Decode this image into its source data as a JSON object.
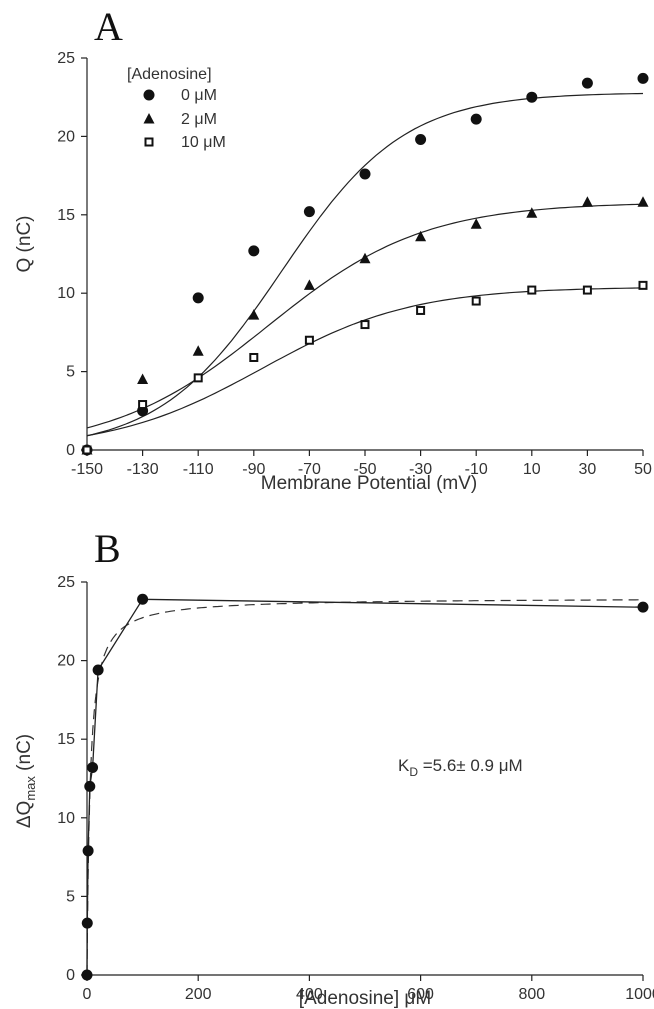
{
  "chart_data": [
    {
      "panel": "A",
      "type": "scatter",
      "xlabel": "Membrane Potential (mV)",
      "ylabel": "Q (nC)",
      "xlim": [
        -150,
        50
      ],
      "ylim": [
        0,
        25
      ],
      "xticks": [
        -150,
        -130,
        -110,
        -90,
        -70,
        -50,
        -30,
        -10,
        10,
        30,
        50
      ],
      "yticks": [
        0,
        5,
        10,
        15,
        20,
        25
      ],
      "legend_title": "[Adenosine]",
      "legend_position": "top-left",
      "grid": false,
      "series": [
        {
          "name": "0 μM",
          "marker": "circle",
          "x": [
            -150,
            -130,
            -110,
            -90,
            -70,
            -50,
            -30,
            -10,
            10,
            30,
            50
          ],
          "y": [
            0,
            2.5,
            9.7,
            12.7,
            15.2,
            17.6,
            19.8,
            21.1,
            22.5,
            23.4,
            23.7
          ],
          "fit": {
            "model": "Boltzmann",
            "qmax": 22.8,
            "v_half": -80,
            "slope": 22
          }
        },
        {
          "name": "2 μM",
          "marker": "triangle",
          "x": [
            -150,
            -130,
            -110,
            -90,
            -70,
            -50,
            -30,
            -10,
            10,
            30,
            50
          ],
          "y": [
            0,
            4.5,
            6.3,
            8.6,
            10.5,
            12.2,
            13.6,
            14.4,
            15.1,
            15.8,
            15.8
          ],
          "fit": {
            "model": "Boltzmann",
            "qmax": 15.8,
            "v_half": -85,
            "slope": 28
          }
        },
        {
          "name": "10 μM",
          "marker": "square-open",
          "x": [
            -150,
            -130,
            -110,
            -90,
            -70,
            -50,
            -30,
            -10,
            10,
            30,
            50
          ],
          "y": [
            0,
            2.9,
            4.6,
            5.9,
            7.0,
            8.0,
            8.9,
            9.5,
            10.2,
            10.2,
            10.5
          ],
          "fit": {
            "model": "Boltzmann",
            "qmax": 10.4,
            "v_half": -87,
            "slope": 27
          }
        }
      ]
    },
    {
      "panel": "B",
      "type": "line",
      "xlabel": "[Adenosine]  μM",
      "ylabel_main": "ΔQ",
      "ylabel_sub": "max",
      "ylabel_unit": " (nC)",
      "xlim": [
        0,
        1000
      ],
      "ylim": [
        0,
        25
      ],
      "xticks": [
        0,
        200,
        400,
        600,
        800,
        1000
      ],
      "yticks": [
        0,
        5,
        10,
        15,
        20,
        25
      ],
      "grid": false,
      "annotation": {
        "main": "K",
        "sub": "D",
        "rest": " =5.6± 0.9 μM"
      },
      "series": [
        {
          "marker": "circle",
          "x": [
            0,
            0.5,
            2,
            5,
            10,
            20,
            100,
            1000
          ],
          "y": [
            0,
            3.3,
            7.9,
            12.0,
            13.2,
            19.4,
            23.9,
            23.4
          ]
        }
      ],
      "fit": {
        "model": "hyperbolic",
        "bmax": 24,
        "kd": 5.6,
        "style": "dashed"
      }
    }
  ]
}
